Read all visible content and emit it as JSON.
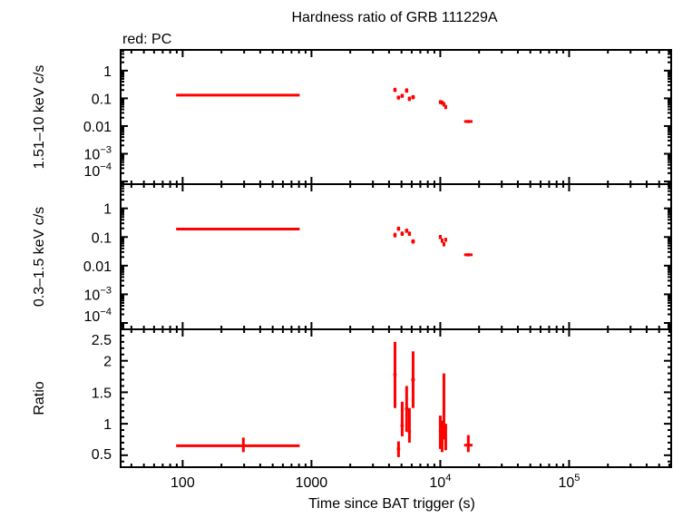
{
  "chart_data": {
    "type": "scatter",
    "title": "Hardness ratio of GRB 111229A",
    "legend_note": "red: PC",
    "xlabel": "Time since BAT trigger (s)",
    "x_scale": "log",
    "xlim": [
      33,
      620000
    ],
    "x_ticks": [
      {
        "v": 100,
        "label": "100"
      },
      {
        "v": 1000,
        "label": "1000"
      },
      {
        "v": 10000,
        "label": "10",
        "sup": "4"
      },
      {
        "v": 100000,
        "label": "10",
        "sup": "5"
      }
    ],
    "series_color": "#ff0000",
    "panels": [
      {
        "ylabel": "1.51–10 keV c/s",
        "y_scale": "log",
        "ylim": [
          8e-05,
          5.6
        ],
        "y_ticks": [
          {
            "v": 1,
            "label": "1"
          },
          {
            "v": 0.1,
            "label": "0.1"
          },
          {
            "v": 0.01,
            "label": "0.01"
          },
          {
            "v": 0.001,
            "label": "10",
            "sup": "−3"
          },
          {
            "v": 0.0001,
            "label": "10",
            "sup": "−4"
          }
        ],
        "points": [
          {
            "x": 296,
            "xlo": 89,
            "xhi": 810,
            "y": 0.13,
            "ylo": 0.12,
            "yhi": 0.14
          },
          {
            "x": 4450,
            "xlo": 4320,
            "xhi": 4580,
            "y": 0.2,
            "ylo": 0.17,
            "yhi": 0.24
          },
          {
            "x": 4740,
            "xlo": 4600,
            "xhi": 4880,
            "y": 0.106,
            "ylo": 0.09,
            "yhi": 0.125
          },
          {
            "x": 5060,
            "xlo": 4910,
            "xhi": 5210,
            "y": 0.123,
            "ylo": 0.105,
            "yhi": 0.145
          },
          {
            "x": 5480,
            "xlo": 5320,
            "xhi": 5640,
            "y": 0.19,
            "ylo": 0.16,
            "yhi": 0.23
          },
          {
            "x": 5760,
            "xlo": 5600,
            "xhi": 5920,
            "y": 0.096,
            "ylo": 0.08,
            "yhi": 0.115
          },
          {
            "x": 6150,
            "xlo": 5950,
            "xhi": 6350,
            "y": 0.11,
            "ylo": 0.093,
            "yhi": 0.13
          },
          {
            "x": 10000,
            "xlo": 9750,
            "xhi": 10250,
            "y": 0.073,
            "ylo": 0.062,
            "yhi": 0.086
          },
          {
            "x": 10330,
            "xlo": 10100,
            "xhi": 10550,
            "y": 0.07,
            "ylo": 0.059,
            "yhi": 0.083
          },
          {
            "x": 10670,
            "xlo": 10450,
            "xhi": 10900,
            "y": 0.061,
            "ylo": 0.051,
            "yhi": 0.073
          },
          {
            "x": 11020,
            "xlo": 10800,
            "xhi": 11250,
            "y": 0.049,
            "ylo": 0.041,
            "yhi": 0.058
          },
          {
            "x": 16500,
            "xlo": 15300,
            "xhi": 17800,
            "y": 0.0146,
            "ylo": 0.0128,
            "yhi": 0.0166
          }
        ]
      },
      {
        "ylabel": "0.3–1.5 keV c/s",
        "y_scale": "log",
        "ylim": [
          6e-05,
          7
        ],
        "y_ticks": [
          {
            "v": 1,
            "label": "1"
          },
          {
            "v": 0.1,
            "label": "0.1"
          },
          {
            "v": 0.01,
            "label": "0.01"
          },
          {
            "v": 0.001,
            "label": "10",
            "sup": "−3"
          },
          {
            "v": 0.0001,
            "label": "10",
            "sup": "−4"
          }
        ],
        "points": [
          {
            "x": 296,
            "xlo": 89,
            "xhi": 810,
            "y": 0.19,
            "ylo": 0.18,
            "yhi": 0.2
          },
          {
            "x": 4450,
            "xlo": 4320,
            "xhi": 4580,
            "y": 0.116,
            "ylo": 0.097,
            "yhi": 0.14
          },
          {
            "x": 4740,
            "xlo": 4600,
            "xhi": 4880,
            "y": 0.195,
            "ylo": 0.165,
            "yhi": 0.23
          },
          {
            "x": 5060,
            "xlo": 4910,
            "xhi": 5210,
            "y": 0.13,
            "ylo": 0.11,
            "yhi": 0.155
          },
          {
            "x": 5480,
            "xlo": 5320,
            "xhi": 5640,
            "y": 0.165,
            "ylo": 0.14,
            "yhi": 0.195
          },
          {
            "x": 5760,
            "xlo": 5600,
            "xhi": 5920,
            "y": 0.13,
            "ylo": 0.11,
            "yhi": 0.155
          },
          {
            "x": 6150,
            "xlo": 5950,
            "xhi": 6350,
            "y": 0.07,
            "ylo": 0.059,
            "yhi": 0.083
          },
          {
            "x": 10000,
            "xlo": 9750,
            "xhi": 10250,
            "y": 0.1,
            "ylo": 0.085,
            "yhi": 0.118
          },
          {
            "x": 10330,
            "xlo": 10100,
            "xhi": 10550,
            "y": 0.075,
            "ylo": 0.063,
            "yhi": 0.089
          },
          {
            "x": 10670,
            "xlo": 10450,
            "xhi": 10900,
            "y": 0.056,
            "ylo": 0.047,
            "yhi": 0.066
          },
          {
            "x": 11020,
            "xlo": 10800,
            "xhi": 11250,
            "y": 0.08,
            "ylo": 0.068,
            "yhi": 0.094
          },
          {
            "x": 16500,
            "xlo": 15300,
            "xhi": 17800,
            "y": 0.024,
            "ylo": 0.021,
            "yhi": 0.027
          }
        ]
      },
      {
        "ylabel": "Ratio",
        "y_scale": "linear",
        "ylim": [
          0.31,
          2.5
        ],
        "y_ticks": [
          {
            "v": 2.5,
            "label": "2.5"
          },
          {
            "v": 2,
            "label": "2"
          },
          {
            "v": 1.5,
            "label": "1.5"
          },
          {
            "v": 1,
            "label": "1"
          },
          {
            "v": 0.5,
            "label": "0.5"
          }
        ],
        "points": [
          {
            "x": 296,
            "xlo": 89,
            "xhi": 810,
            "y": 0.65,
            "ylo": 0.55,
            "yhi": 0.78
          },
          {
            "x": 4450,
            "xlo": 4320,
            "xhi": 4580,
            "y": 1.78,
            "ylo": 1.25,
            "yhi": 2.3
          },
          {
            "x": 4740,
            "xlo": 4600,
            "xhi": 4880,
            "y": 0.6,
            "ylo": 0.47,
            "yhi": 0.72
          },
          {
            "x": 5060,
            "xlo": 4910,
            "xhi": 5210,
            "y": 0.97,
            "ylo": 0.8,
            "yhi": 1.35
          },
          {
            "x": 5480,
            "xlo": 5320,
            "xhi": 5640,
            "y": 1.24,
            "ylo": 0.87,
            "yhi": 1.6
          },
          {
            "x": 5760,
            "xlo": 5600,
            "xhi": 5920,
            "y": 0.87,
            "ylo": 0.7,
            "yhi": 1.25
          },
          {
            "x": 6150,
            "xlo": 5950,
            "xhi": 6350,
            "y": 1.7,
            "ylo": 1.25,
            "yhi": 2.15
          },
          {
            "x": 10000,
            "xlo": 9750,
            "xhi": 10250,
            "y": 0.88,
            "ylo": 0.6,
            "yhi": 1.13
          },
          {
            "x": 10330,
            "xlo": 10100,
            "xhi": 10550,
            "y": 0.8,
            "ylo": 0.55,
            "yhi": 1.05
          },
          {
            "x": 10670,
            "xlo": 10450,
            "xhi": 10900,
            "y": 1.25,
            "ylo": 0.75,
            "yhi": 1.8
          },
          {
            "x": 11020,
            "xlo": 10800,
            "xhi": 11250,
            "y": 0.75,
            "ylo": 0.58,
            "yhi": 1.0
          },
          {
            "x": 16500,
            "xlo": 15300,
            "xhi": 17800,
            "y": 0.66,
            "ylo": 0.55,
            "yhi": 0.82
          }
        ]
      }
    ]
  }
}
